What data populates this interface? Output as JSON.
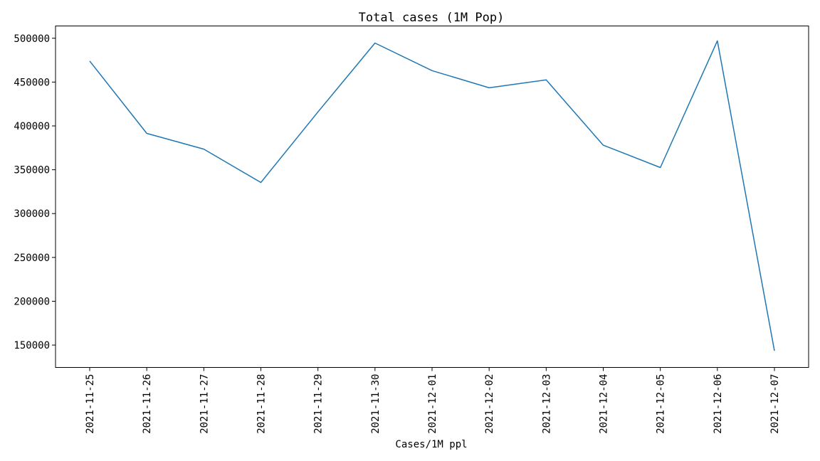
{
  "chart_data": {
    "type": "line",
    "title": "Total cases (1M Pop)",
    "xlabel": "Cases/1M ppl",
    "ylabel": "",
    "x": [
      "2021-11-25",
      "2021-11-26",
      "2021-11-27",
      "2021-11-28",
      "2021-11-29",
      "2021-11-30",
      "2021-12-01",
      "2021-12-02",
      "2021-12-03",
      "2021-12-04",
      "2021-12-05",
      "2021-12-06",
      "2021-12-07"
    ],
    "series": [
      {
        "values": [
          474000,
          391500,
          373500,
          335500,
          416000,
          494500,
          463000,
          443500,
          452500,
          378000,
          352500,
          497000,
          143500
        ],
        "color": "#1f77b4"
      }
    ],
    "ylim": [
      124500,
      514000
    ],
    "yticks": [
      150000,
      200000,
      250000,
      300000,
      350000,
      400000,
      450000,
      500000
    ],
    "ytick_labels": [
      "150000",
      "200000",
      "250000",
      "300000",
      "350000",
      "400000",
      "450000",
      "500000"
    ],
    "grid": false,
    "legend": "none"
  }
}
